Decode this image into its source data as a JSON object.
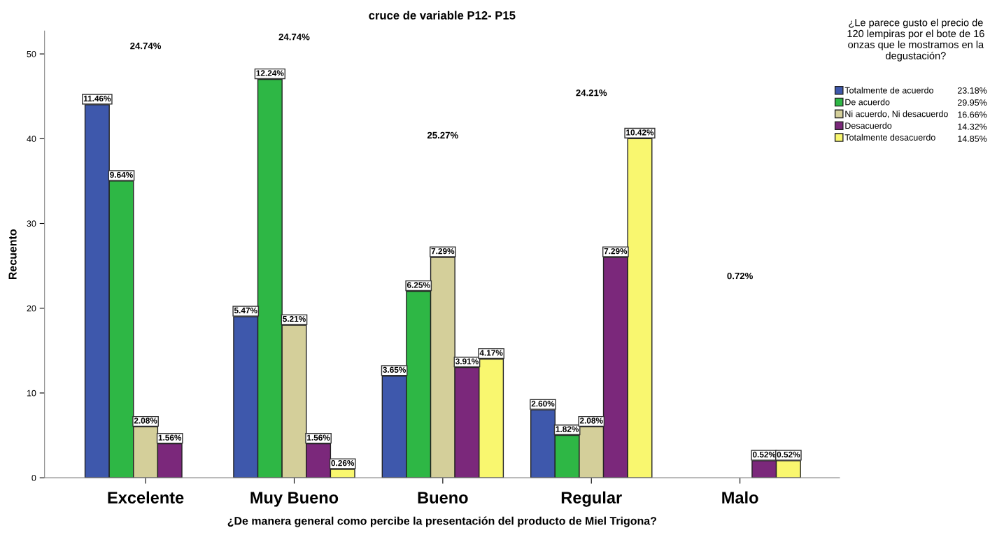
{
  "chart_data": {
    "type": "bar",
    "title": "cruce de variable P12- P15",
    "xlabel": "¿De manera general como percibe la presentación del producto de Miel Trigona?",
    "ylabel": "Recuento",
    "legend_title": "¿Le parece gusto el precio de 120 lempiras por el bote de 16 onzas que le mostramos en la degustación?",
    "categories": [
      "Excelente",
      "Muy Bueno",
      "Bueno",
      "Regular",
      "Malo"
    ],
    "series": [
      {
        "name": "Totalmente de acuerdo",
        "color": "#3e58ac",
        "values": [
          44,
          19,
          12,
          8,
          null
        ]
      },
      {
        "name": "De acuerdo",
        "color": "#2eb745",
        "values": [
          35,
          47,
          22,
          5,
          null
        ]
      },
      {
        "name": "Ni acuerdo, Ni desacuerdo",
        "color": "#d4cf9a",
        "values": [
          6,
          18,
          26,
          6,
          null
        ]
      },
      {
        "name": "Desacuerdo",
        "color": "#7b287b",
        "values": [
          4,
          4,
          13,
          26,
          2
        ]
      },
      {
        "name": "Totalmente desacuerdo",
        "color": "#f9f76f",
        "values": [
          null,
          1,
          14,
          40,
          2
        ]
      }
    ],
    "ylim": [
      0,
      52.7
    ],
    "yticks": [
      0,
      10,
      20,
      30,
      40,
      50
    ],
    "grid": false,
    "legend": "top right",
    "annotations": [
      "24.74%",
      "24.74%",
      "25.27%",
      "24.21%",
      "0.72%",
      "23.18%",
      "29.95%",
      "16.66%",
      "14.32%",
      "14.85%",
      "11.46%",
      "9.64%",
      "2.08%",
      "1.56%",
      "5.47%",
      "12.24%",
      "5.21%",
      "1.56%",
      "0.26%",
      "3.65%",
      "6.25%",
      "7.29%",
      "3.91%",
      "4.17%",
      "2.60%",
      "1.82%",
      "2.08%",
      "7.29%",
      "10.42%",
      "0.52%",
      "0.52%"
    ]
  }
}
